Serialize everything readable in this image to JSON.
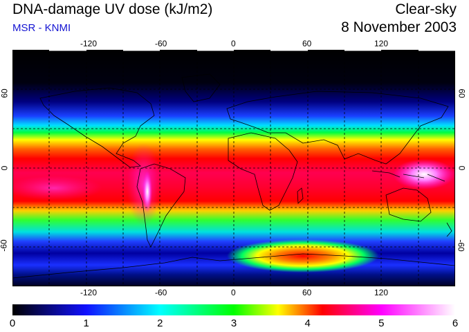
{
  "header": {
    "title": "DNA-damage UV dose (kJ/m2)",
    "credit": "MSR - KNMI",
    "mode": "Clear-sky",
    "date": "8 November 2003"
  },
  "map": {
    "lon_ticks": [
      "-120",
      "-60",
      "0",
      "60",
      "120"
    ],
    "lat_ticks_left": [
      "60",
      "0",
      "-60"
    ],
    "lat_ticks_right": [
      "60",
      "0",
      "-60"
    ]
  },
  "colorbar": {
    "ticks": [
      "0",
      "1",
      "2",
      "3",
      "4",
      "5",
      "6"
    ],
    "colors": [
      "#000000",
      "#1010ff",
      "#00ffff",
      "#00ff00",
      "#ffff00",
      "#ff0000",
      "#ff00ff",
      "#ffffff"
    ]
  }
}
